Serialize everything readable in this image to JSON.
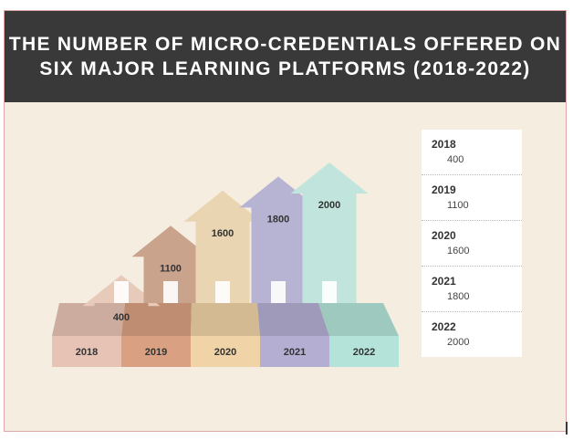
{
  "title": {
    "line1": "THE NUMBER OF MICRO-CREDENTIALS OFFERED ON",
    "line2": "SIX MAJOR LEARNING PLATFORMS (2018-2022)"
  },
  "chart_data": {
    "type": "bar",
    "title": "THE NUMBER OF MICRO-CREDENTIALS OFFERED ON SIX MAJOR LEARNING PLATFORMS (2018-2022)",
    "categories": [
      "2018",
      "2019",
      "2020",
      "2021",
      "2022"
    ],
    "values": [
      400,
      1100,
      1600,
      1800,
      2000
    ],
    "xlabel": "",
    "ylabel": "",
    "grid": false
  },
  "colors": {
    "background": "#f4ede0",
    "title_bar": "#393939",
    "house_2018": "#e8cabb",
    "house_2019": "#c9a38c",
    "house_2020": "#ead5b2",
    "house_2021": "#b7b3d3",
    "house_2022": "#c1e5dc",
    "base_2018": "#e7c3b5",
    "base_2019": "#d9a181",
    "base_2020": "#f0d3a7",
    "base_2021": "#b5aed3",
    "base_2022": "#b4e4d9"
  },
  "table": {
    "rows": [
      {
        "year": "2018",
        "value": "400"
      },
      {
        "year": "2019",
        "value": "1100"
      },
      {
        "year": "2020",
        "value": "1600"
      },
      {
        "year": "2021",
        "value": "1800"
      },
      {
        "year": "2022",
        "value": "2000"
      }
    ]
  }
}
